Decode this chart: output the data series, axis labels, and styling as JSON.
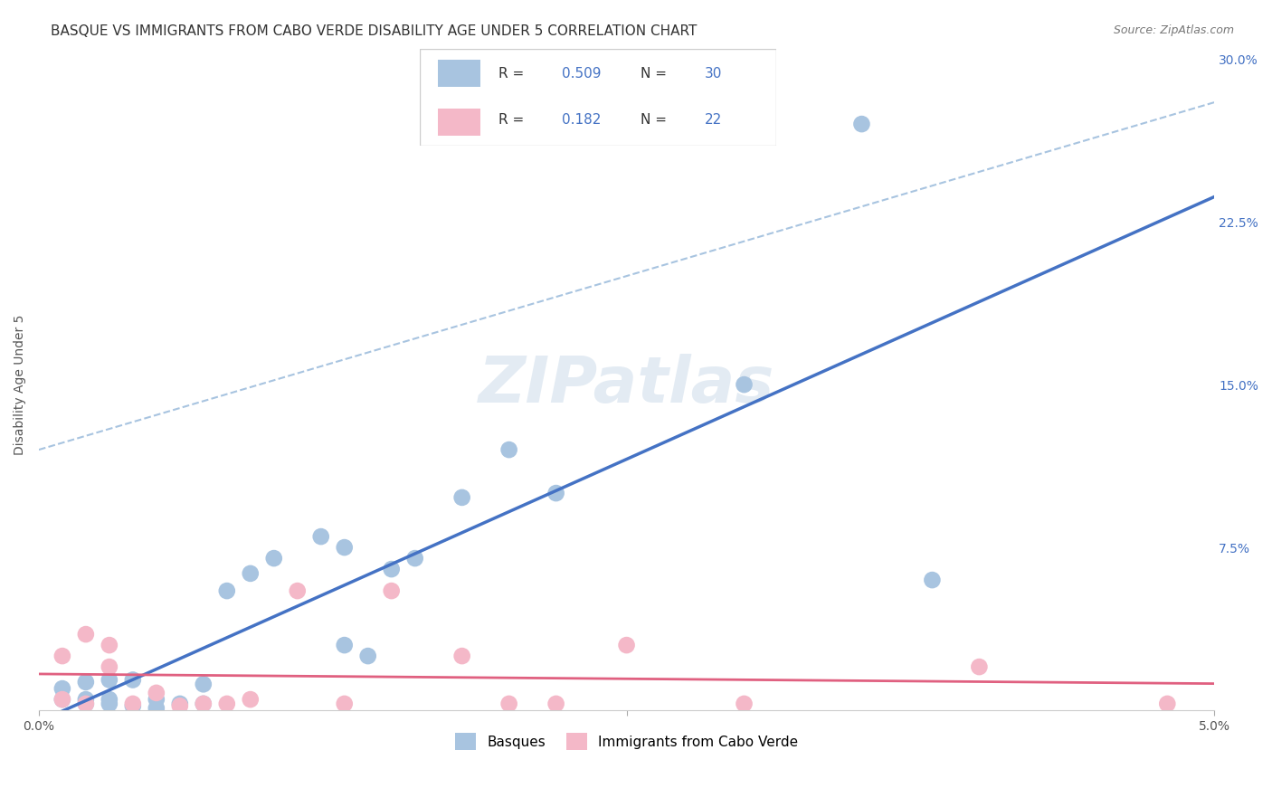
{
  "title": "BASQUE VS IMMIGRANTS FROM CABO VERDE DISABILITY AGE UNDER 5 CORRELATION CHART",
  "source": "Source: ZipAtlas.com",
  "xlabel_bottom": "",
  "ylabel": "Disability Age Under 5",
  "xlim": [
    0.0,
    0.05
  ],
  "ylim": [
    0.0,
    0.3
  ],
  "xticks": [
    0.0,
    0.025,
    0.05
  ],
  "xtick_labels": [
    "0.0%",
    "",
    "5.0%"
  ],
  "yticks": [
    0.0,
    0.075,
    0.15,
    0.225,
    0.3
  ],
  "ytick_labels": [
    "",
    "7.5%",
    "15.0%",
    "22.5%",
    "30.0%"
  ],
  "r_basque": "0.509",
  "n_basque": "30",
  "r_cabo": "0.182",
  "n_cabo": "22",
  "legend_labels": [
    "Basques",
    "Immigrants from Cabo Verde"
  ],
  "basque_color": "#a8c4e0",
  "cabo_color": "#f4b8c8",
  "basque_line_color": "#4472c4",
  "cabo_line_color": "#e06080",
  "basque_dashed_color": "#a8c4e0",
  "title_fontsize": 11,
  "axis_label_fontsize": 10,
  "tick_fontsize": 10,
  "legend_fontsize": 11,
  "watermark": "ZIPatlas",
  "basque_x": [
    0.001,
    0.001,
    0.002,
    0.002,
    0.002,
    0.003,
    0.003,
    0.003,
    0.004,
    0.004,
    0.005,
    0.005,
    0.006,
    0.007,
    0.007,
    0.008,
    0.009,
    0.01,
    0.012,
    0.013,
    0.013,
    0.014,
    0.015,
    0.016,
    0.018,
    0.02,
    0.022,
    0.03,
    0.035,
    0.038
  ],
  "basque_y": [
    0.005,
    0.01,
    0.003,
    0.005,
    0.013,
    0.003,
    0.005,
    0.014,
    0.002,
    0.014,
    0.001,
    0.005,
    0.003,
    0.003,
    0.012,
    0.055,
    0.063,
    0.07,
    0.08,
    0.075,
    0.03,
    0.025,
    0.065,
    0.07,
    0.098,
    0.12,
    0.1,
    0.15,
    0.27,
    0.06
  ],
  "cabo_x": [
    0.001,
    0.001,
    0.002,
    0.002,
    0.003,
    0.003,
    0.004,
    0.005,
    0.006,
    0.007,
    0.008,
    0.009,
    0.011,
    0.013,
    0.015,
    0.018,
    0.02,
    0.022,
    0.025,
    0.03,
    0.04,
    0.048
  ],
  "cabo_y": [
    0.005,
    0.025,
    0.003,
    0.035,
    0.02,
    0.03,
    0.003,
    0.008,
    0.002,
    0.003,
    0.003,
    0.005,
    0.055,
    0.003,
    0.055,
    0.025,
    0.003,
    0.003,
    0.03,
    0.003,
    0.02,
    0.003
  ]
}
